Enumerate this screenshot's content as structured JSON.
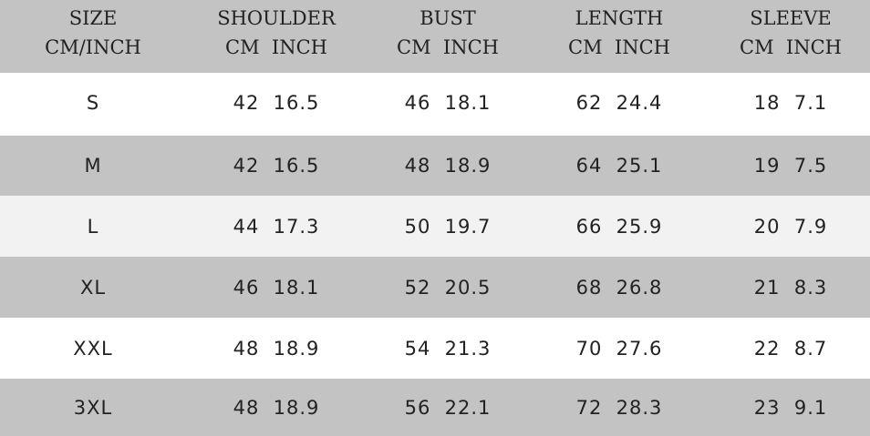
{
  "headers": [
    {
      "title": "SIZE",
      "sub": "CM/INCH"
    },
    {
      "title": "SHOULDER",
      "sub": "CM  INCH"
    },
    {
      "title": "BUST",
      "sub": "CM  INCH"
    },
    {
      "title": "LENGTH",
      "sub": "CM  INCH"
    },
    {
      "title": "SLEEVE",
      "sub": "CM  INCH"
    }
  ],
  "rows": [
    [
      "S",
      "42  16.5",
      "46  18.1",
      "62  24.4",
      "18  7.1"
    ],
    [
      "M",
      "42  16.5",
      "48  18.9",
      "64  25.1",
      "19  7.5"
    ],
    [
      "L",
      "44  17.3",
      "50  19.7",
      "66  25.9",
      "20  7.9"
    ],
    [
      "XL",
      "46  18.1",
      "52  20.5",
      "68  26.8",
      "21  8.3"
    ],
    [
      "XXL",
      "48  18.9",
      "54  21.3",
      "70  27.6",
      "22  8.7"
    ],
    [
      "3XL",
      "48  18.9",
      "56  22.1",
      "72  28.3",
      "23  9.1"
    ]
  ],
  "colors": {
    "header_bg": "#c3c3c3",
    "row_grey": "#c3c3c3",
    "row_white": "#ffffff",
    "row_light": "#f2f2f2"
  }
}
